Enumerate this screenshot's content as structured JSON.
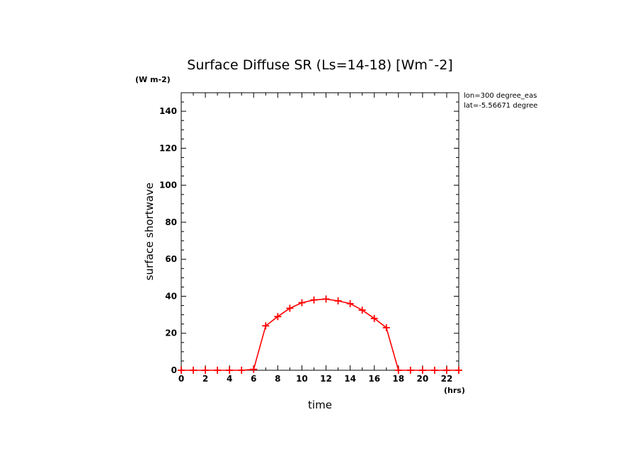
{
  "chart_data": {
    "type": "line",
    "title": "Surface Diffuse SR (Ls=14-18) [Wm¯-2]",
    "yunit": "(W m-2)",
    "xunit": "(hrs)",
    "xlabel": "time",
    "ylabel": "surface shortwave",
    "annotations": [
      "lon=300 degree_eas",
      "lat=-5.56671 degree"
    ],
    "xlim": [
      0,
      23
    ],
    "ylim": [
      0,
      150
    ],
    "xticks": [
      0,
      2,
      4,
      6,
      8,
      10,
      12,
      14,
      16,
      18,
      20,
      22
    ],
    "yticks": [
      0,
      20,
      40,
      60,
      80,
      100,
      120,
      140
    ],
    "x": [
      0,
      1,
      2,
      3,
      4,
      5,
      6,
      7,
      8,
      9,
      10,
      11,
      12,
      13,
      14,
      15,
      16,
      17,
      18,
      19,
      20,
      21,
      22,
      23
    ],
    "series": [
      {
        "color": "#ff0000",
        "marker": "plus",
        "values": [
          0,
          0,
          0,
          0,
          0,
          0,
          0.5,
          24,
          29,
          33.5,
          36.5,
          38,
          38.5,
          37.5,
          36,
          32.5,
          28,
          23,
          0,
          0,
          0,
          0,
          0,
          0
        ]
      }
    ],
    "grid": false
  }
}
